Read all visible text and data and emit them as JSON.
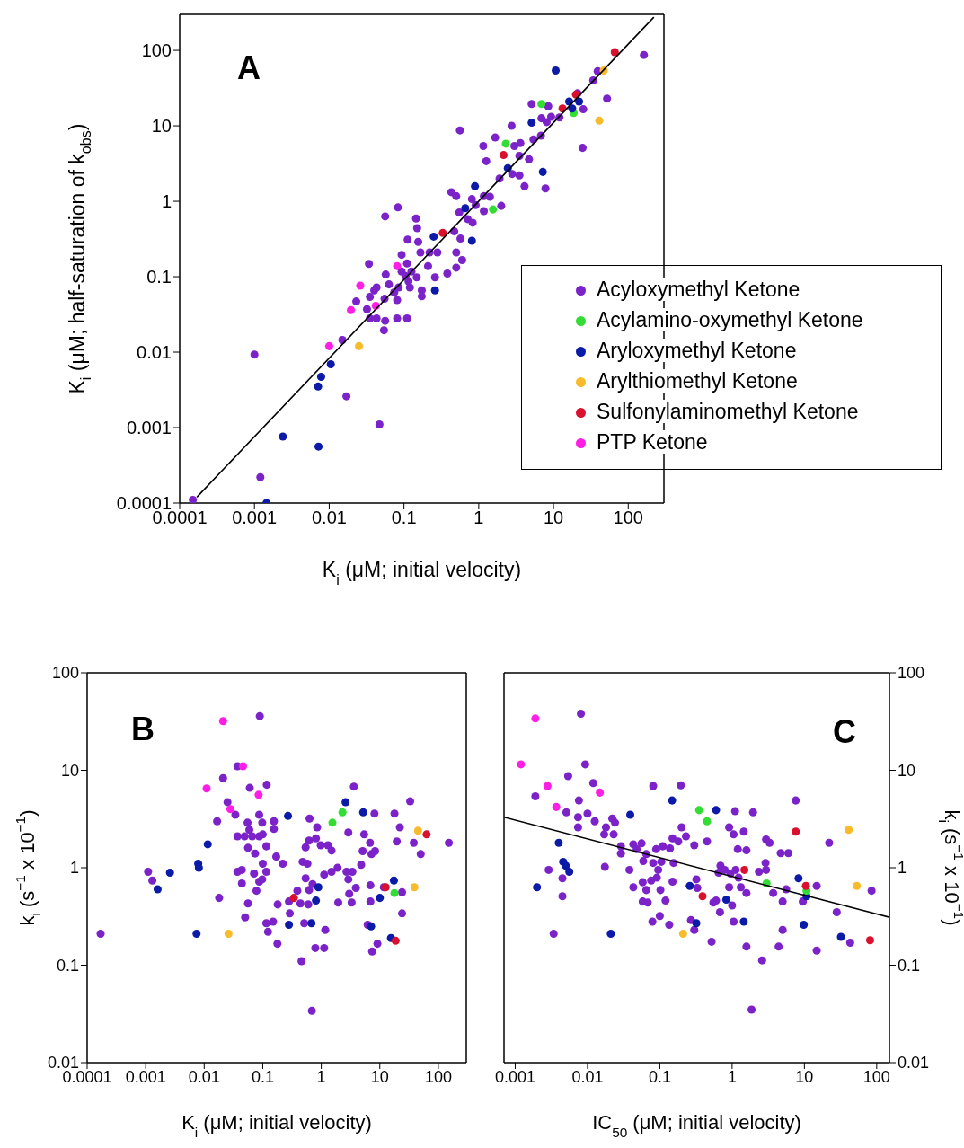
{
  "chart_data": [
    {
      "type": "scatter",
      "title": "A",
      "xlabel": "K$_{i}$ (μM; initial velocity)",
      "ylabel": "K$_{i}$ (μM; half-saturation of k$_{obs}$)",
      "log": "xy",
      "xlim": [
        0.0001,
        300
      ],
      "ylim": [
        0.0001,
        300
      ],
      "xticks": [
        0.0001,
        0.001,
        0.01,
        0.1,
        1,
        10,
        100
      ],
      "yticks": [
        0.0001,
        0.001,
        0.01,
        0.1,
        1,
        10,
        100
      ],
      "legend": "bottom right",
      "marker": "circle",
      "grid": false,
      "series": [
        {
          "name": "Acyloxymethyl Ketone",
          "color": "#7b22c9",
          "x": [
            0.00015,
            0.0012,
            0.001,
            0.017,
            0.047,
            0.015,
            0.034,
            0.023,
            0.032,
            0.035,
            0.043,
            0.056,
            0.054,
            0.081,
            0.11,
            0.035,
            0.043,
            0.055,
            0.057,
            0.063,
            0.074,
            0.081,
            0.085,
            0.093,
            0.093,
            0.11,
            0.115,
            0.126,
            0.148,
            0.12,
            0.112,
            0.083,
            0.056,
            0.145,
            0.15,
            0.155,
            0.166,
            0.22,
            0.28,
            0.21,
            0.173,
            0.173,
            0.26,
            0.38,
            0.5,
            0.6,
            0.5,
            0.47,
            0.57,
            0.43,
            0.5,
            0.55,
            0.71,
            0.83,
            0.81,
            0.91,
            1.17,
            1.41,
            1.17,
            2.0,
            1.9,
            1.26,
            1.15,
            1.66,
            0.56,
            2.75,
            3.0,
            3.6,
            3.5,
            4.7,
            2.8,
            3.5,
            4.1,
            7.8,
            5.4,
            6.8,
            6.9,
            8.1,
            9.3,
            12,
            5.1,
            8.5,
            25,
            24.5,
            52,
            34,
            39,
            162,
            21,
            0.105,
            0.04
          ],
          "values": [
            0.00011,
            0.00022,
            0.0093,
            0.0026,
            0.0011,
            0.0145,
            0.148,
            0.047,
            0.037,
            0.028,
            0.028,
            0.026,
            0.0195,
            0.028,
            0.028,
            0.054,
            0.072,
            0.051,
            0.107,
            0.079,
            0.062,
            0.049,
            0.072,
            0.195,
            0.117,
            0.15,
            0.087,
            0.117,
            0.098,
            0.072,
            0.31,
            0.83,
            0.63,
            0.59,
            0.44,
            0.29,
            0.21,
            0.21,
            0.21,
            0.138,
            0.066,
            0.055,
            0.098,
            0.11,
            0.132,
            0.166,
            0.21,
            0.4,
            0.32,
            1.32,
            1.17,
            0.71,
            0.58,
            0.52,
            1.07,
            0.89,
            1.17,
            1.15,
            0.74,
            0.87,
            2.0,
            3.4,
            5.4,
            7.0,
            8.7,
            10,
            5.4,
            5.9,
            4.0,
            3.6,
            2.3,
            2.2,
            1.58,
            1.48,
            6.6,
            7.4,
            12.6,
            11.2,
            13.2,
            12.9,
            19.5,
            18.2,
            16.6,
            5.1,
            23,
            40,
            53,
            87,
            27,
            0.102,
            0.066
          ]
        },
        {
          "name": "Acylamino-oxymethyl Ketone",
          "color": "#33dd33",
          "x": [
            6.9,
            18.6,
            2.3,
            1.55
          ],
          "values": [
            19.5,
            14.8,
            5.8,
            0.78
          ]
        },
        {
          "name": "Aryloxymethyl Ketone",
          "color": "#0c1aa8",
          "x": [
            10.7,
            16.2,
            17.8,
            22,
            5.1,
            2.45,
            7.2,
            0.89,
            0.66,
            0.25,
            0.81,
            0.26,
            0.0105,
            0.0078,
            0.0071,
            0.0024,
            0.0072,
            0.00145
          ],
          "values": [
            54,
            21,
            17,
            21,
            11,
            2.75,
            2.45,
            1.58,
            0.81,
            0.34,
            0.3,
            0.066,
            0.0069,
            0.0047,
            0.0035,
            0.00076,
            0.00056,
            0.0001
          ]
        },
        {
          "name": "Arylthiomethyl Ketone",
          "color": "#f8bb2a",
          "x": [
            47,
            41,
            0.025
          ],
          "values": [
            54,
            11.7,
            0.012
          ]
        },
        {
          "name": "Sulfonylaminomethyl Ketone",
          "color": "#d9102e",
          "x": [
            66,
            20,
            13.2,
            2.15,
            0.33
          ],
          "values": [
            95,
            26,
            17,
            4.1,
            0.38
          ]
        },
        {
          "name": "PTP Ketone",
          "color": "#ff1ee6",
          "x": [
            0.081,
            0.026,
            0.042,
            0.0195,
            0.01
          ],
          "values": [
            0.138,
            0.076,
            0.041,
            0.036,
            0.012
          ]
        },
        {
          "type": "line",
          "marker": "none",
          "color": "#000000",
          "x": [
            0.00017,
            220
          ],
          "values": [
            0.00012,
            275
          ]
        }
      ]
    },
    {
      "type": "scatter",
      "title": "B",
      "xlabel": "K$_{i}$ (μM; initial velocity)",
      "ylabel": "k$_{i}$ (s$^{−1}$ x 10$^{−1}$)",
      "log": "xy",
      "xlim": [
        0.0001,
        300
      ],
      "ylim": [
        0.01,
        100
      ],
      "xticks": [
        0.0001,
        0.001,
        0.01,
        0.1,
        1,
        10,
        100
      ],
      "yticks": [
        0.01,
        0.1,
        1,
        10,
        100
      ],
      "marker": "circle",
      "grid": false,
      "series": [
        {
          "color": "#7b22c9",
          "x": [
            0.00017,
            0.0011,
            0.0013,
            0.018,
            0.0166,
            0.021,
            0.025,
            0.034,
            0.037,
            0.089,
            0.06,
            0.117,
            0.087,
            0.055,
            0.059,
            0.037,
            0.049,
            0.066,
            0.087,
            0.1,
            0.098,
            0.155,
            0.155,
            0.056,
            0.074,
            0.115,
            0.17,
            0.22,
            0.1,
            0.115,
            0.037,
            0.044,
            0.071,
            0.044,
            0.087,
            0.098,
            0.078,
            0.056,
            0.05,
            0.115,
            0.123,
            0.15,
            0.178,
            0.18,
            0.28,
            0.29,
            0.39,
            0.44,
            0.51,
            0.6,
            0.54,
            0.62,
            0.71,
            0.48,
            0.58,
            0.54,
            0.63,
            0.85,
            0.62,
            0.81,
            0.98,
            1.3,
            1.5,
            1.12,
            1.5,
            1.9,
            2.7,
            3.4,
            2.9,
            4.8,
            3.9,
            3.0,
            3.3,
            1.95,
            1.17,
            0.79,
            1.12,
            0.46,
            0.69,
            2.9,
            3.6,
            5.4,
            6.8,
            5.1,
            7.2,
            8.3,
            8.1,
            6.9,
            6.9,
            6.2,
            9.1,
            7.4,
            11.7,
            17.8,
            19.5,
            22,
            24,
            24,
            33,
            38,
            50,
            151
          ],
          "values": [
            0.21,
            0.91,
            0.74,
            0.49,
            3.0,
            8.3,
            4.7,
            3.5,
            11,
            36,
            6.6,
            7.1,
            3.5,
            2.9,
            2.45,
            2.1,
            2.1,
            2.1,
            2.1,
            2.2,
            2.9,
            3.0,
            2.5,
            1.6,
            1.4,
            1.66,
            1.3,
            1.1,
            1.1,
            0.91,
            0.91,
            0.95,
            0.87,
            0.69,
            0.72,
            0.76,
            0.58,
            0.43,
            0.31,
            0.27,
            0.22,
            0.28,
            0.166,
            0.42,
            0.45,
            0.34,
            0.58,
            0.43,
            0.27,
            0.42,
            0.78,
            0.59,
            0.68,
            1.15,
            1.1,
            1.62,
            3.2,
            2.6,
            1.9,
            2.0,
            1.7,
            1.7,
            1.5,
            0.85,
            0.91,
            1.0,
            0.91,
            0.91,
            0.76,
            1.07,
            0.62,
            0.54,
            0.44,
            0.44,
            0.23,
            0.15,
            0.15,
            0.11,
            0.034,
            2.3,
            6.8,
            2.2,
            1.8,
            1.48,
            1.38,
            1.48,
            3.6,
            0.66,
            0.45,
            0.26,
            0.166,
            0.138,
            0.63,
            3.6,
            1.86,
            2.6,
            0.56,
            0.34,
            4.8,
            1.8,
            1.38,
            1.8
          ]
        },
        {
          "color": "#33dd33",
          "x": [
            1.55,
            2.3,
            17.8
          ],
          "values": [
            2.9,
            3.7,
            0.55
          ]
        },
        {
          "color": "#0c1aa8",
          "x": [
            0.0016,
            0.0026,
            0.0079,
            0.0081,
            0.0074,
            0.0115,
            0.27,
            2.6,
            5.2,
            0.28,
            0.68,
            0.89,
            0.81,
            7.1,
            10,
            17.4,
            15.5
          ],
          "values": [
            0.6,
            0.89,
            1.1,
            1.0,
            0.21,
            1.74,
            3.4,
            4.7,
            3.7,
            0.26,
            0.27,
            0.63,
            0.46,
            0.25,
            0.49,
            0.74,
            0.19
          ]
        },
        {
          "color": "#f8bb2a",
          "x": [
            0.026,
            45,
            39
          ],
          "values": [
            0.21,
            2.4,
            0.63
          ]
        },
        {
          "color": "#d9102e",
          "x": [
            0.34,
            12.6,
            18.6,
            63
          ],
          "values": [
            0.49,
            0.63,
            0.178,
            2.2
          ]
        },
        {
          "color": "#ff1ee6",
          "x": [
            0.021,
            0.046,
            0.011,
            0.085,
            0.028
          ],
          "values": [
            32,
            11,
            6.5,
            5.6,
            4.0
          ]
        }
      ]
    },
    {
      "type": "scatter",
      "title": "C",
      "xlabel": "IC$_{50}$ (μM; initial velocity)",
      "ylabel": "k$_{i}$ (s$^{−1}$ x 10$^{−1}$)",
      "log": "xy",
      "xlim": [
        0.0007,
        150
      ],
      "ylim": [
        0.01,
        100
      ],
      "xticks": [
        0.001,
        0.01,
        0.1,
        1,
        10,
        100
      ],
      "yticks": [
        0.01,
        0.1,
        1,
        10,
        100
      ],
      "marker": "circle",
      "grid": false,
      "series": [
        {
          "color": "#7b22c9",
          "x": [
            0.0081,
            0.0093,
            0.0054,
            0.0019,
            0.0076,
            0.012,
            0.0051,
            0.0074,
            0.0074,
            0.01,
            0.0126,
            0.022,
            0.024,
            0.018,
            0.017,
            0.023,
            0.029,
            0.029,
            0.043,
            0.056,
            0.048,
            0.065,
            0.059,
            0.081,
            0.105,
            0.089,
            0.11,
            0.138,
            0.15,
            0.18,
            0.23,
            0.3,
            0.2,
            0.081,
            0.195,
            0.45,
            0.155,
            0.095,
            0.091,
            0.076,
            0.038,
            0.0174,
            0.0045,
            0.0045,
            0.0029,
            0.0034,
            0.058,
            0.043,
            0.065,
            0.058,
            0.068,
            0.102,
            0.12,
            0.15,
            0.1,
            0.079,
            0.135,
            0.27,
            0.3,
            0.32,
            0.33,
            0.52,
            0.55,
            0.6,
            0.68,
            1.0,
            0.91,
            0.69,
            0.65,
            0.79,
            0.95,
            1.12,
            1.23,
            1.32,
            1.58,
            1.05,
            1.58,
            2.6,
            1.86,
            0.91,
            1.05,
            1.1,
            1.95,
            1.45,
            1.2,
            1.58,
            2.95,
            3.3,
            2.9,
            2.35,
            2.95,
            3.7,
            4.7,
            6.0,
            5.6,
            5.0,
            5.0,
            4.4,
            7.6,
            9.5,
            14.8,
            14.8,
            22,
            28,
            43,
            85
          ],
          "values": [
            38,
            11.5,
            8.7,
            5.4,
            4.9,
            7.4,
            3.7,
            3.3,
            2.6,
            3.6,
            3.0,
            3.2,
            2.9,
            2.6,
            2.2,
            2.2,
            1.66,
            1.4,
            1.74,
            1.78,
            1.55,
            1.38,
            1.17,
            1.12,
            1.15,
            1.55,
            1.66,
            1.58,
            2.0,
            1.86,
            2.1,
            1.7,
            2.6,
            6.9,
            7.0,
            1.86,
            1.12,
            0.95,
            0.79,
            0.74,
            0.95,
            1.02,
            0.78,
            0.51,
            0.95,
            0.21,
            0.71,
            0.63,
            0.59,
            0.45,
            0.44,
            0.59,
            0.46,
            0.72,
            0.32,
            0.28,
            0.26,
            0.29,
            0.23,
            0.76,
            0.62,
            0.174,
            0.44,
            0.46,
            0.35,
            0.41,
            0.63,
            1.05,
            0.89,
            0.95,
            0.87,
            0.95,
            0.79,
            0.63,
            0.55,
            0.28,
            0.155,
            0.112,
            0.035,
            2.6,
            2.2,
            3.8,
            3.7,
            2.35,
            1.55,
            1.51,
            1.95,
            1.8,
            1.12,
            0.91,
            0.95,
            0.55,
            1.41,
            1.41,
            0.6,
            0.45,
            0.23,
            0.155,
            4.9,
            0.45,
            0.65,
            0.141,
            1.8,
            0.35,
            0.17,
            0.58
          ]
        },
        {
          "color": "#0c1aa8",
          "x": [
            0.002,
            0.004,
            0.0046,
            0.005,
            0.0056,
            0.021,
            0.039,
            0.148,
            0.6,
            0.26,
            0.32,
            0.83,
            1.45,
            8.3,
            10.7,
            9.8,
            32
          ],
          "values": [
            0.63,
            1.8,
            1.15,
            1.05,
            0.91,
            0.21,
            3.5,
            4.9,
            3.9,
            0.65,
            0.27,
            0.47,
            0.28,
            0.78,
            0.51,
            0.26,
            0.195
          ]
        },
        {
          "color": "#33dd33",
          "x": [
            0.35,
            0.45,
            3.0,
            10.7
          ],
          "values": [
            3.9,
            3.0,
            0.69,
            0.58
          ]
        },
        {
          "color": "#f8bb2a",
          "x": [
            0.21,
            41,
            53
          ],
          "values": [
            0.21,
            2.45,
            0.65
          ]
        },
        {
          "color": "#d9102e",
          "x": [
            0.39,
            1.48,
            7.6,
            10.5,
            81
          ],
          "values": [
            0.51,
            0.95,
            2.35,
            0.65,
            0.18
          ]
        },
        {
          "color": "#ff1ee6",
          "x": [
            0.0019,
            0.0012,
            0.0028,
            0.0037,
            0.0148
          ],
          "values": [
            34,
            11.5,
            6.9,
            4.2,
            5.9
          ]
        },
        {
          "type": "line",
          "marker": "none",
          "color": "#000000",
          "x": [
            0.0007,
            150
          ],
          "values": [
            3.3,
            0.31
          ]
        }
      ]
    }
  ]
}
